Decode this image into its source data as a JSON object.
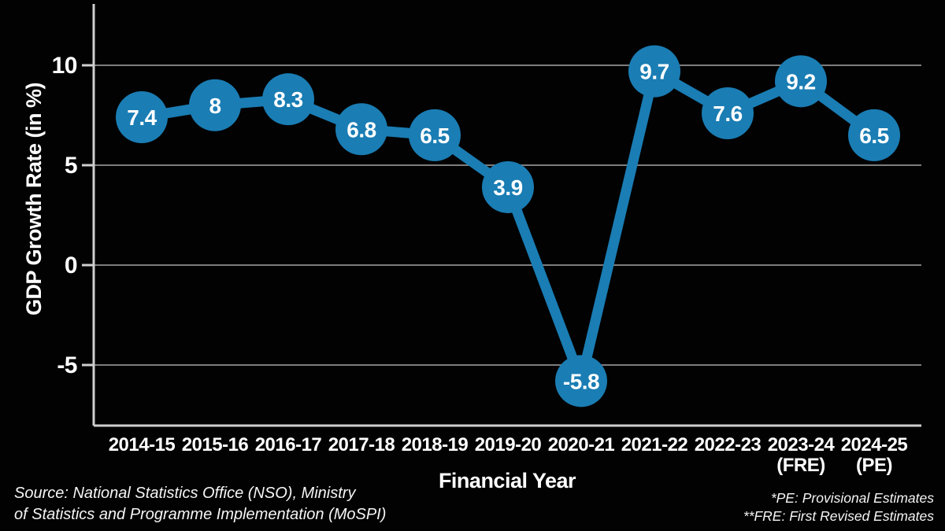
{
  "chart_data": {
    "type": "line",
    "xlabel": "Financial Year",
    "ylabel": "GDP Growth Rate (in %)",
    "categories": [
      {
        "label": "2014-15",
        "sub": ""
      },
      {
        "label": "2015-16",
        "sub": ""
      },
      {
        "label": "2016-17",
        "sub": ""
      },
      {
        "label": "2017-18",
        "sub": ""
      },
      {
        "label": "2018-19",
        "sub": ""
      },
      {
        "label": "2019-20",
        "sub": ""
      },
      {
        "label": "2020-21",
        "sub": ""
      },
      {
        "label": "2021-22",
        "sub": ""
      },
      {
        "label": "2022-23",
        "sub": ""
      },
      {
        "label": "2023-24",
        "sub": "(FRE)"
      },
      {
        "label": "2024-25",
        "sub": "(PE)"
      }
    ],
    "values": [
      7.4,
      8,
      8.3,
      6.8,
      6.5,
      3.9,
      -5.8,
      9.7,
      7.6,
      9.2,
      6.5
    ],
    "point_labels": [
      "7.4",
      "8",
      "8.3",
      "6.8",
      "6.5",
      "3.9",
      "-5.8",
      "9.7",
      "7.6",
      "9.2",
      "6.5"
    ],
    "yticks": [
      {
        "value": 10,
        "label": "10"
      },
      {
        "value": 5,
        "label": "5"
      },
      {
        "value": 0,
        "label": "0"
      },
      {
        "value": -5,
        "label": "-5"
      }
    ],
    "ylim": [
      -8,
      13
    ],
    "grid": true,
    "legend": "none",
    "colors": {
      "line": "#1a7db4",
      "marker": "#1a7db4",
      "point_label": "#ffffff",
      "grid": "#7d7d7d",
      "axis": "#cfcfcf",
      "text": "#ffffff",
      "background": "#020202"
    }
  },
  "footer": {
    "source_line1": "Source: National Statistics Office (NSO), Ministry",
    "source_line2": "of Statistics and Programme Implementation (MoSPI)",
    "note_line1": "*PE: Provisional Estimates",
    "note_line2": "**FRE: First Revised Estimates"
  }
}
